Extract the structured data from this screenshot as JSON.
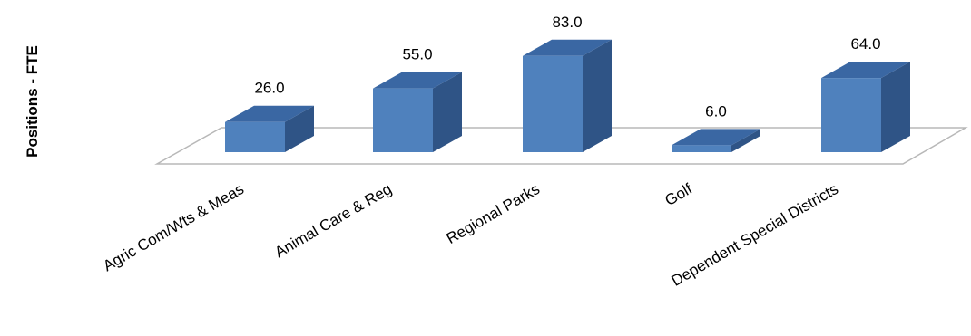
{
  "chart_data": {
    "type": "bar",
    "style": "3d-column",
    "ylabel": "Positions - FTE",
    "categories": [
      "Agric Com/Wts & Meas",
      "Animal Care & Reg",
      "Regional Parks",
      "Golf",
      "Dependent Special Districts"
    ],
    "values": [
      26.0,
      55.0,
      83.0,
      6.0,
      64.0
    ],
    "value_labels": [
      "26.0",
      "55.0",
      "83.0",
      "6.0",
      "64.0"
    ],
    "colors": {
      "front": "#4f81bd",
      "top": "#3a67a3",
      "side": "#2f5486"
    }
  }
}
